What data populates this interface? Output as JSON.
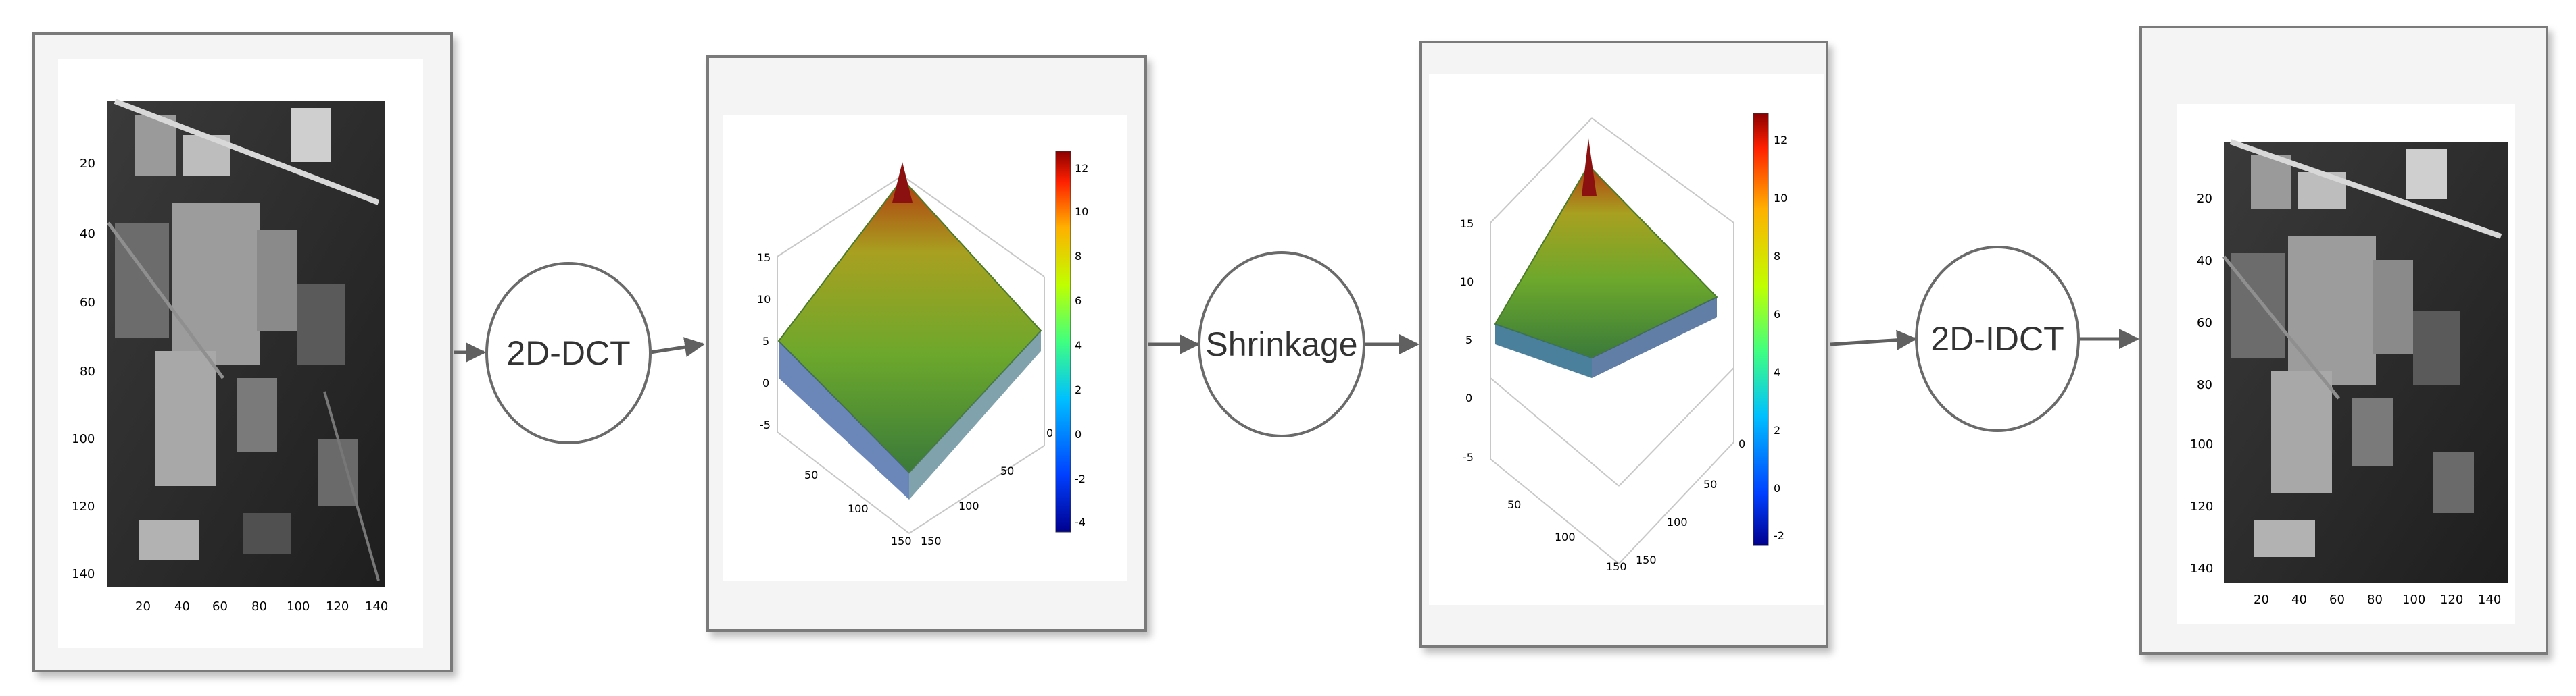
{
  "nodes": {
    "dct": "2D-DCT",
    "shrinkage": "Shrinkage",
    "idct": "2D-IDCT"
  },
  "panel1": {
    "y_ticks": [
      "20",
      "40",
      "60",
      "80",
      "100",
      "120",
      "140"
    ],
    "x_ticks": [
      "20",
      "40",
      "60",
      "80",
      "100",
      "120",
      "140"
    ]
  },
  "panel2": {
    "z_ticks": [
      "15",
      "10",
      "5",
      "0",
      "-5"
    ],
    "x_ticks": [
      "50",
      "100",
      "150"
    ],
    "y_ticks": [
      "0",
      "50",
      "100",
      "150"
    ],
    "colorbar_ticks": [
      "12",
      "10",
      "8",
      "6",
      "4",
      "2",
      "0",
      "-2",
      "-4"
    ]
  },
  "panel3": {
    "z_ticks": [
      "15",
      "10",
      "5",
      "0",
      "-5"
    ],
    "x_ticks": [
      "50",
      "100",
      "150"
    ],
    "y_ticks": [
      "0",
      "50",
      "100",
      "150"
    ],
    "colorbar_ticks": [
      "12",
      "10",
      "8",
      "6",
      "4",
      "2",
      "0",
      "-2"
    ]
  },
  "panel4": {
    "y_ticks": [
      "20",
      "40",
      "60",
      "80",
      "100",
      "120",
      "140"
    ],
    "x_ticks": [
      "20",
      "40",
      "60",
      "80",
      "100",
      "120",
      "140"
    ]
  },
  "colors": {
    "jet_top": "#8b0000",
    "jet_mid": "#7fbf3f",
    "jet_low": "#1f4fbf",
    "frame": "#7a7a7a",
    "arrow": "#606060"
  }
}
